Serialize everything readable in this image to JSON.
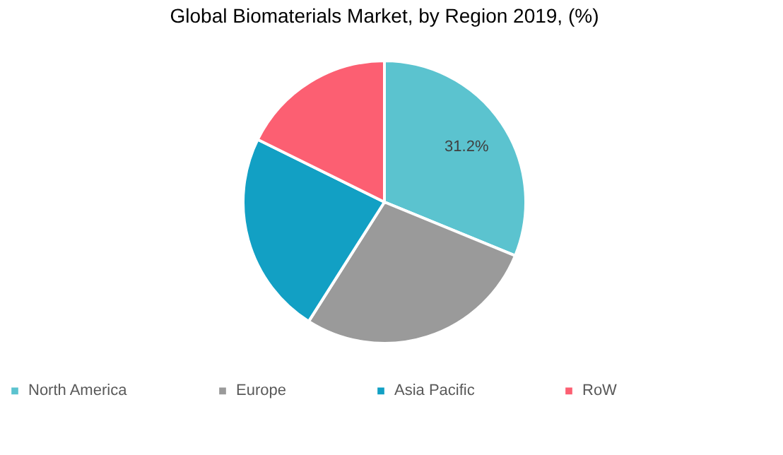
{
  "chart_data": {
    "type": "pie",
    "title": "Global Biomaterials Market, by Region 2019, (%)",
    "categories": [
      "North America",
      "Europe",
      "Asia Pacific",
      "RoW"
    ],
    "values": [
      31.2,
      27.8,
      23.3,
      17.7
    ],
    "colors": [
      "#5bc3cf",
      "#9a9a9a",
      "#12a0c4",
      "#fc5f72"
    ],
    "value_labels": [
      "31.2%",
      null,
      null,
      null
    ],
    "legend": "bottom"
  }
}
